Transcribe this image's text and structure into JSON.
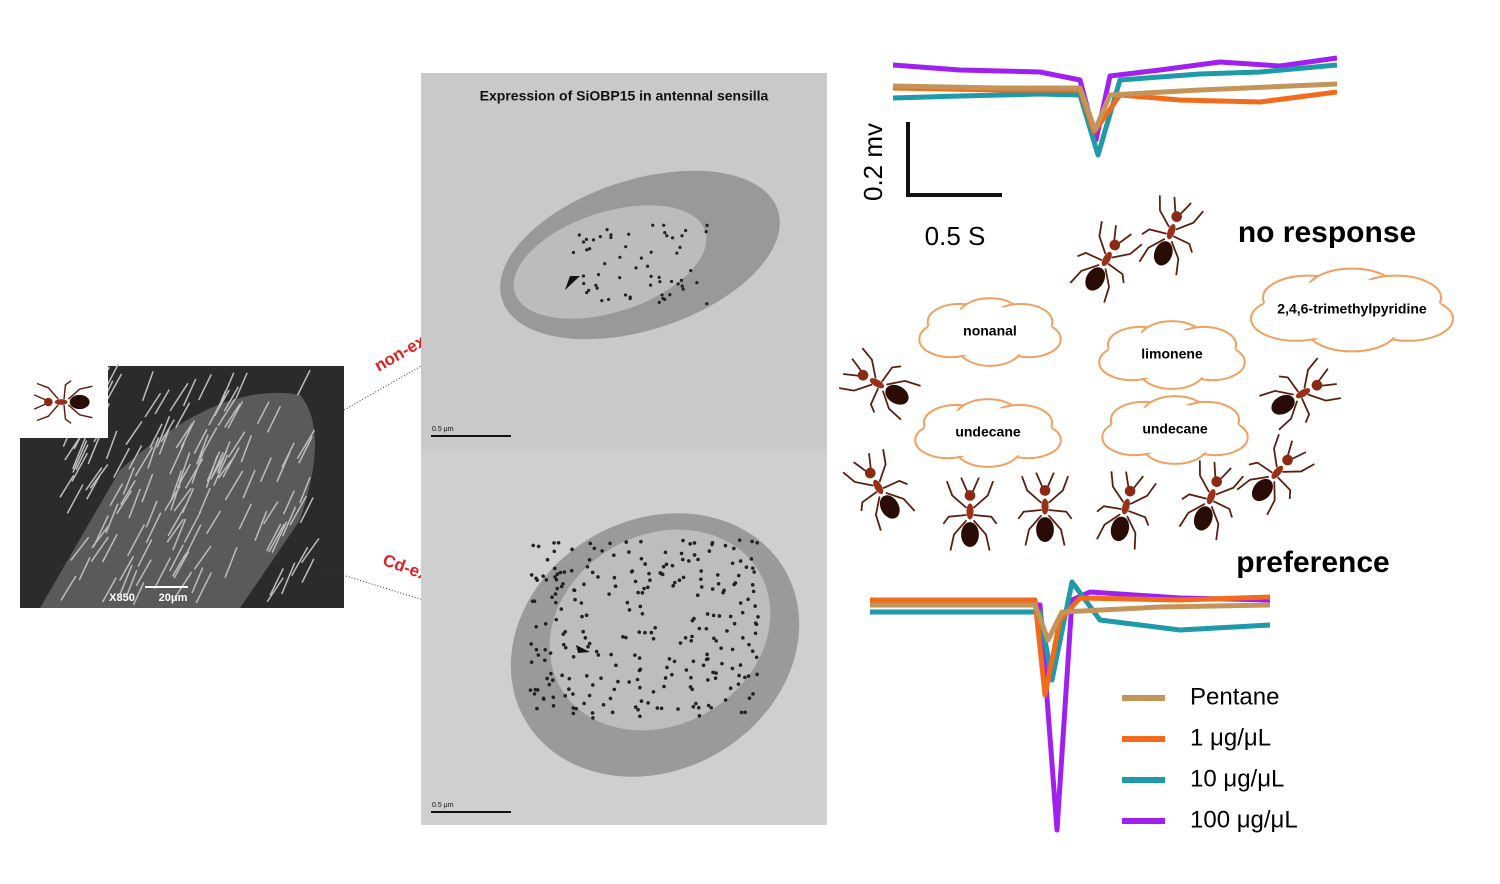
{
  "sem_panel": {
    "magnification": "X850",
    "scale_bar": "20μm"
  },
  "tem_panel": {
    "title": "Expression of SiOBP15 in antennal sensilla",
    "top_scale": "0.5 μm",
    "bottom_scale": "0.5 μm"
  },
  "arrows": {
    "top": "non-exposure",
    "bottom": "Cd-exposure"
  },
  "trace_scale": {
    "vertical": "0.2 mv",
    "horizontal": "0.5 S"
  },
  "behavior": {
    "top": "no response",
    "bottom": "preference",
    "odors": [
      "nonanal",
      "limonene",
      "2,4,6-trimethylpyridine",
      "undecane",
      "undecane"
    ]
  },
  "legend": [
    {
      "label": "Pentane",
      "color": "#c4955a"
    },
    {
      "label": "1 μg/μL",
      "color": "#f26b1d"
    },
    {
      "label": "10 μg/μL",
      "color": "#1e9aa8"
    },
    {
      "label": "100 μg/μL",
      "color": "#a020f0"
    }
  ]
}
